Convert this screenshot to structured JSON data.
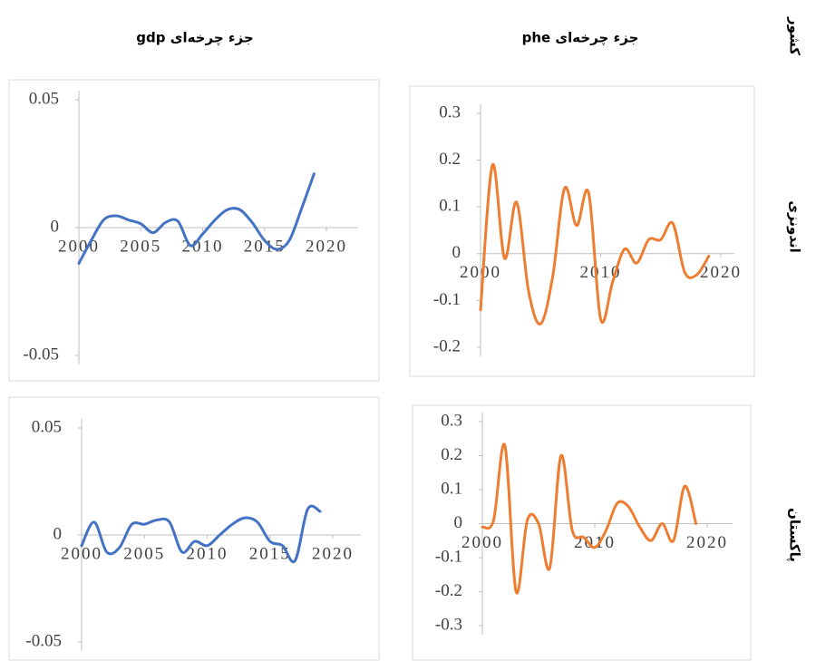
{
  "column_headers": [
    "جزء چرخه‌ای gdp",
    "جزء چرخه‌ای phe"
  ],
  "row_labels": [
    "کشور",
    "اندونزی",
    "پاکستان"
  ],
  "chart_data": [
    {
      "type": "line",
      "x": [
        2000,
        2001,
        2002,
        2003,
        2004,
        2005,
        2006,
        2007,
        2008,
        2009,
        2010,
        2011,
        2012,
        2013,
        2014,
        2015,
        2016,
        2017,
        2018,
        2019
      ],
      "series": [
        {
          "name": "gdp",
          "color": "#4472c4",
          "values": [
            -0.014,
            -0.005,
            0.003,
            0.0046,
            0.003,
            0.0015,
            -0.002,
            0.002,
            0.0025,
            -0.007,
            -0.0025,
            0.003,
            0.007,
            0.007,
            0.002,
            -0.005,
            -0.0085,
            -0.005,
            0.0075,
            0.021
          ]
        }
      ],
      "xlim": [
        2000,
        2020
      ],
      "xticks": [
        2000,
        2005,
        2010,
        2015,
        2020
      ],
      "ylim": [
        -0.05,
        0.05
      ],
      "yticks": [
        -0.05,
        0,
        0.05
      ]
    },
    {
      "type": "line",
      "x": [
        2000,
        2001,
        2002,
        2003,
        2004,
        2005,
        2006,
        2007,
        2008,
        2009,
        2010,
        2011,
        2012,
        2013,
        2014,
        2015,
        2016,
        2017,
        2018,
        2019
      ],
      "series": [
        {
          "name": "phe",
          "color": "#ed7d31",
          "values": [
            -0.12,
            0.19,
            -0.01,
            0.11,
            -0.08,
            -0.15,
            -0.05,
            0.14,
            0.06,
            0.13,
            -0.14,
            -0.06,
            0.01,
            -0.02,
            0.03,
            0.03,
            0.065,
            -0.04,
            -0.045,
            -0.005
          ]
        }
      ],
      "xlim": [
        2000,
        2020
      ],
      "xticks": [
        2000,
        2010,
        2020
      ],
      "ylim": [
        -0.2,
        0.3
      ],
      "yticks": [
        -0.2,
        -0.1,
        0,
        0.1,
        0.2,
        0.3
      ]
    },
    {
      "type": "line",
      "x": [
        2000,
        2001,
        2002,
        2003,
        2004,
        2005,
        2006,
        2007,
        2008,
        2009,
        2010,
        2011,
        2012,
        2013,
        2014,
        2015,
        2016,
        2017,
        2018,
        2019
      ],
      "series": [
        {
          "name": "gdp",
          "color": "#4472c4",
          "values": [
            -0.005,
            0.006,
            -0.008,
            -0.006,
            0.005,
            0.005,
            0.007,
            0.006,
            -0.008,
            -0.003,
            -0.005,
            0.0,
            0.005,
            0.008,
            0.006,
            -0.003,
            -0.005,
            -0.012,
            0.012,
            0.011
          ]
        }
      ],
      "xlim": [
        2000,
        2020
      ],
      "xticks": [
        2000,
        2005,
        2010,
        2015,
        2020
      ],
      "ylim": [
        -0.05,
        0.05
      ],
      "yticks": [
        -0.05,
        0,
        0.05
      ]
    },
    {
      "type": "line",
      "x": [
        2000,
        2001,
        2002,
        2003,
        2004,
        2005,
        2006,
        2007,
        2008,
        2009,
        2010,
        2011,
        2012,
        2013,
        2014,
        2015,
        2016,
        2017,
        2018,
        2019
      ],
      "series": [
        {
          "name": "phe",
          "color": "#ed7d31",
          "values": [
            -0.01,
            0.01,
            0.23,
            -0.2,
            0.01,
            0.0,
            -0.13,
            0.2,
            -0.02,
            -0.04,
            -0.07,
            -0.02,
            0.06,
            0.05,
            -0.01,
            -0.05,
            0.0,
            -0.05,
            0.11,
            0.0
          ]
        }
      ],
      "xlim": [
        2000,
        2020
      ],
      "xticks": [
        2000,
        2010,
        2020
      ],
      "ylim": [
        -0.3,
        0.3
      ],
      "yticks": [
        -0.3,
        -0.2,
        -0.1,
        0,
        0.1,
        0.2,
        0.3
      ]
    }
  ]
}
